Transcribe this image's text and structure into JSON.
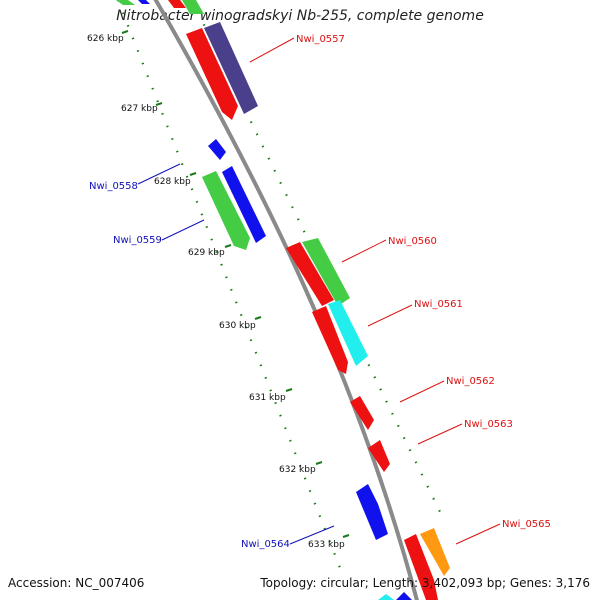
{
  "title": "Nitrobacter winogradskyi Nb-255, complete genome",
  "accession_text": "Accession: NC_007406",
  "summary_text": "Topology: circular; Length: 3,402,093 bp; Genes: 3,176",
  "colors": {
    "backbone": "#8a8a8a",
    "tick": "#1a7a1a",
    "red": "#ee1111",
    "blue": "#1111ee",
    "green": "#44cc44",
    "cyan": "#22eeee",
    "purple": "#4a3f8a",
    "orange": "#ff9911",
    "label_red": "#dd1111",
    "label_blue": "#1111bb"
  },
  "kbp_labels": [
    "626 kbp",
    "627 kbp",
    "628 kbp",
    "629 kbp",
    "630 kbp",
    "631 kbp",
    "632 kbp",
    "633 kbp"
  ],
  "gene_labels": [
    {
      "text": "Nwi_0557",
      "side": "right",
      "color": "red"
    },
    {
      "text": "Nwi_0558",
      "side": "left",
      "color": "blue"
    },
    {
      "text": "Nwi_0559",
      "side": "left",
      "color": "blue"
    },
    {
      "text": "Nwi_0560",
      "side": "right",
      "color": "red"
    },
    {
      "text": "Nwi_0561",
      "side": "right",
      "color": "red"
    },
    {
      "text": "Nwi_0562",
      "side": "right",
      "color": "red"
    },
    {
      "text": "Nwi_0563",
      "side": "right",
      "color": "red"
    },
    {
      "text": "Nwi_0564",
      "side": "left",
      "color": "blue"
    },
    {
      "text": "Nwi_0565",
      "side": "right",
      "color": "red"
    }
  ]
}
